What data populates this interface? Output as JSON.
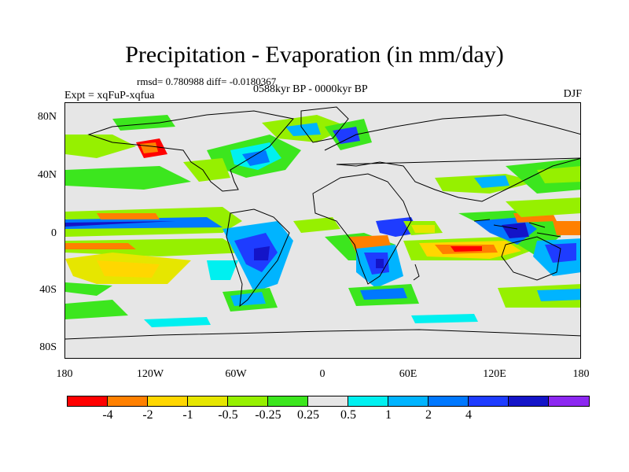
{
  "figure": {
    "title": "Precipitation - Evaporation (in mm/day)",
    "stats": "rmsd= 0.780988 diff= -0.0180367",
    "period": "0588kyr BP - 0000kyr BP",
    "experiment": "Expt = xqFuP-xqfua",
    "season": "DJF"
  },
  "axes": {
    "lat_labels": [
      "80N",
      "40N",
      "0",
      "40S",
      "80S"
    ],
    "lon_labels": [
      "180",
      "120W",
      "60W",
      "0",
      "60E",
      "120E",
      "180"
    ]
  },
  "colorbar": {
    "colors": [
      "#ff0000",
      "#ff8000",
      "#ffd700",
      "#e6e600",
      "#96f000",
      "#3ce61e",
      "#e6e6e6",
      "#00f0f0",
      "#00b4ff",
      "#0078ff",
      "#1e3cff",
      "#1414c8",
      "#8c28f0"
    ],
    "labels": [
      "-4",
      "-2",
      "-1",
      "-0.5",
      "-0.25",
      "0.25",
      "0.5",
      "1",
      "2",
      "4"
    ]
  }
}
